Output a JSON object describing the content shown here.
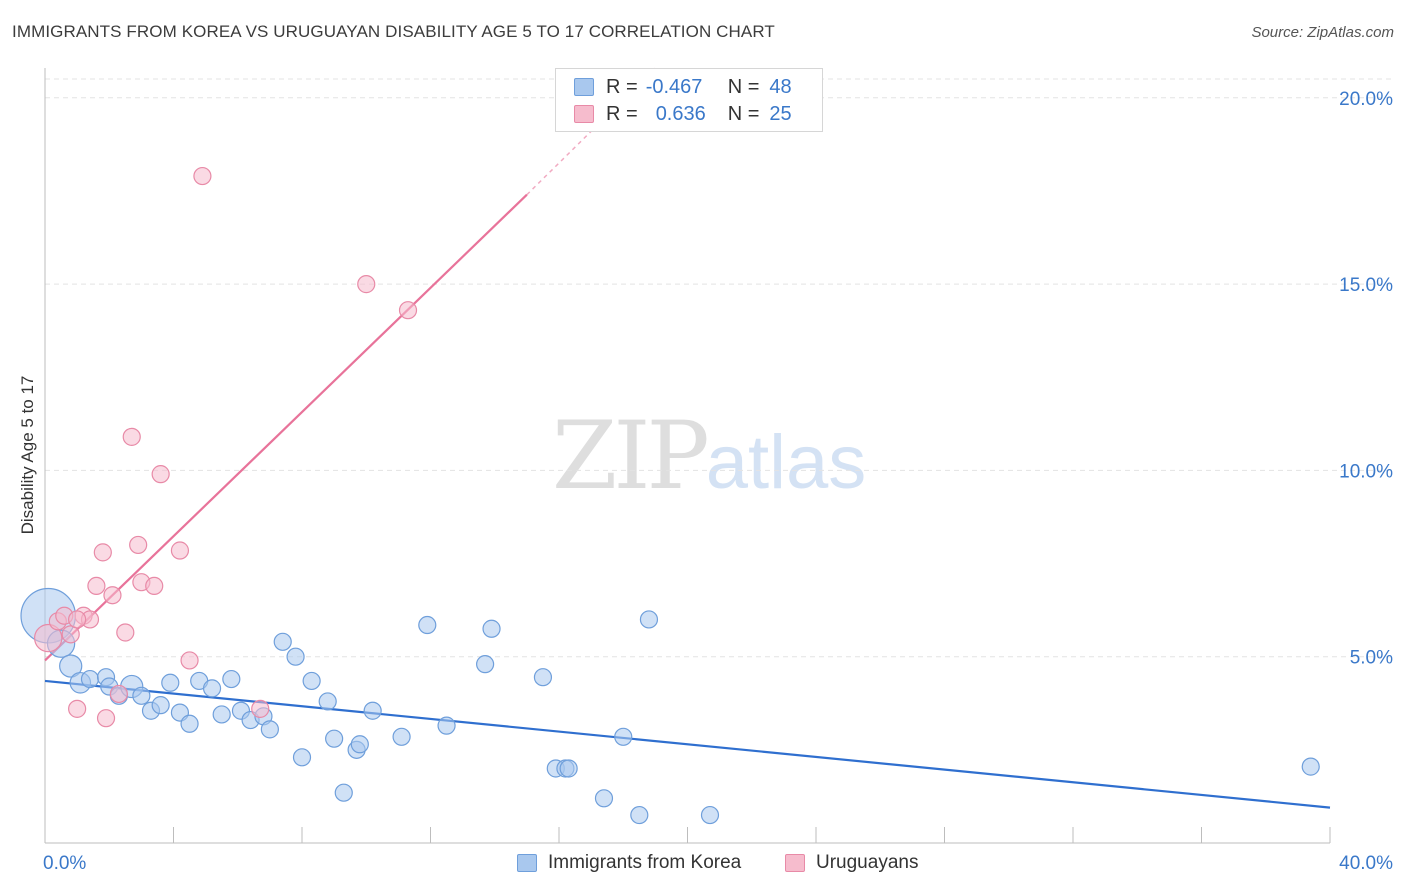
{
  "header": {
    "title": "IMMIGRANTS FROM KOREA VS URUGUAYAN DISABILITY AGE 5 TO 17 CORRELATION CHART",
    "source": "Source: ZipAtlas.com"
  },
  "watermark": {
    "zip": "ZIP",
    "atlas": "atlas"
  },
  "colors": {
    "korea_fill": "#a9c8ee",
    "korea_stroke": "#6f9fdb",
    "korea_line": "#2f6fcf",
    "uru_fill": "#f6bccd",
    "uru_stroke": "#e88aa7",
    "uru_line": "#e8739a",
    "axis_text": "#3a78c9",
    "grid": "#e3e3e3"
  },
  "legend": {
    "rows": [
      {
        "r_label": "R =",
        "r_value": "-0.467",
        "n_label": "N =",
        "n_value": "48"
      },
      {
        "r_label": "R =",
        "r_value": "0.636",
        "n_label": "N =",
        "n_value": "25"
      }
    ]
  },
  "bottom_legend": {
    "korea": "Immigrants from Korea",
    "uruguay": "Uruguayans"
  },
  "chart_data": {
    "type": "scatter",
    "title": "IMMIGRANTS FROM KOREA VS URUGUAYAN DISABILITY AGE 5 TO 17 CORRELATION CHART",
    "xlabel": "",
    "ylabel": "Disability Age 5 to 17",
    "xlim": [
      0,
      40
    ],
    "ylim": [
      0,
      20.8
    ],
    "x_tick_labels": [
      "0.0%",
      "40.0%"
    ],
    "y_ticks": [
      5,
      10,
      15,
      20
    ],
    "y_tick_labels": [
      "5.0%",
      "10.0%",
      "15.0%",
      "20.0%"
    ],
    "grid": true,
    "series": [
      {
        "name": "Immigrants from Korea",
        "R": -0.467,
        "N": 48,
        "trend": {
          "x0": 0,
          "y0": 4.35,
          "x1": 40,
          "y1": 0.95
        },
        "points": [
          [
            0.1,
            6.1,
            3.2
          ],
          [
            0.5,
            5.35,
            1.6
          ],
          [
            0.8,
            4.75,
            1.3
          ],
          [
            1.1,
            4.3,
            1.2
          ],
          [
            1.4,
            4.4,
            1.0
          ],
          [
            1.9,
            4.45,
            1.0
          ],
          [
            2.0,
            4.2,
            1.0
          ],
          [
            2.3,
            3.95,
            1.0
          ],
          [
            2.7,
            4.2,
            1.3
          ],
          [
            3.0,
            3.95,
            1.0
          ],
          [
            3.3,
            3.55,
            1.0
          ],
          [
            3.6,
            3.7,
            1.0
          ],
          [
            3.9,
            4.3,
            1.0
          ],
          [
            4.2,
            3.5,
            1.0
          ],
          [
            4.5,
            3.2,
            1.0
          ],
          [
            4.8,
            4.35,
            1.0
          ],
          [
            5.2,
            4.15,
            1.0
          ],
          [
            5.5,
            3.45,
            1.0
          ],
          [
            5.8,
            4.4,
            1.0
          ],
          [
            6.1,
            3.55,
            1.0
          ],
          [
            6.4,
            3.3,
            1.0
          ],
          [
            6.8,
            3.4,
            1.0
          ],
          [
            7.0,
            3.05,
            1.0
          ],
          [
            7.4,
            5.4,
            1.0
          ],
          [
            7.8,
            5.0,
            1.0
          ],
          [
            8.0,
            2.3,
            1.0
          ],
          [
            8.3,
            4.35,
            1.0
          ],
          [
            8.8,
            3.8,
            1.0
          ],
          [
            9.0,
            2.8,
            1.0
          ],
          [
            9.3,
            1.35,
            1.0
          ],
          [
            9.7,
            2.5,
            1.0
          ],
          [
            9.8,
            2.65,
            1.0
          ],
          [
            10.2,
            3.55,
            1.0
          ],
          [
            11.1,
            2.85,
            1.0
          ],
          [
            11.9,
            5.85,
            1.0
          ],
          [
            12.5,
            3.15,
            1.0
          ],
          [
            13.7,
            4.8,
            1.0
          ],
          [
            13.9,
            5.75,
            1.0
          ],
          [
            15.5,
            4.45,
            1.0
          ],
          [
            15.9,
            2.0,
            1.0
          ],
          [
            16.2,
            2.0,
            1.0
          ],
          [
            16.3,
            2.0,
            1.0
          ],
          [
            17.4,
            1.2,
            1.0
          ],
          [
            18.0,
            2.85,
            1.0
          ],
          [
            18.5,
            0.75,
            1.0
          ],
          [
            18.8,
            6.0,
            1.0
          ],
          [
            20.7,
            0.75,
            1.0
          ],
          [
            39.4,
            2.05,
            1.0
          ]
        ]
      },
      {
        "name": "Uruguayans",
        "R": 0.636,
        "N": 25,
        "trend": {
          "x0": 0,
          "y0": 4.9,
          "x1": 15.0,
          "y1": 17.4,
          "dash_x1": 19.0,
          "dash_y1": 20.8
        },
        "points": [
          [
            0.1,
            5.5,
            1.6
          ],
          [
            0.4,
            5.95,
            1.0
          ],
          [
            0.6,
            6.1,
            1.0
          ],
          [
            0.8,
            5.6,
            1.0
          ],
          [
            1.0,
            3.6,
            1.0
          ],
          [
            1.2,
            6.1,
            1.0
          ],
          [
            1.4,
            6.0,
            1.0
          ],
          [
            1.6,
            6.9,
            1.0
          ],
          [
            1.8,
            7.8,
            1.0
          ],
          [
            1.9,
            3.35,
            1.0
          ],
          [
            2.1,
            6.65,
            1.0
          ],
          [
            2.3,
            4.0,
            1.0
          ],
          [
            2.5,
            5.65,
            1.0
          ],
          [
            2.7,
            10.9,
            1.0
          ],
          [
            2.9,
            8.0,
            1.0
          ],
          [
            3.0,
            7.0,
            1.0
          ],
          [
            3.4,
            6.9,
            1.0
          ],
          [
            3.6,
            9.9,
            1.0
          ],
          [
            4.2,
            7.85,
            1.0
          ],
          [
            4.5,
            4.9,
            1.0
          ],
          [
            4.9,
            17.9,
            1.0
          ],
          [
            6.7,
            3.6,
            1.0
          ],
          [
            10.0,
            15.0,
            1.0
          ],
          [
            11.3,
            14.3,
            1.0
          ],
          [
            1.0,
            6.0,
            1.0
          ]
        ]
      }
    ]
  }
}
